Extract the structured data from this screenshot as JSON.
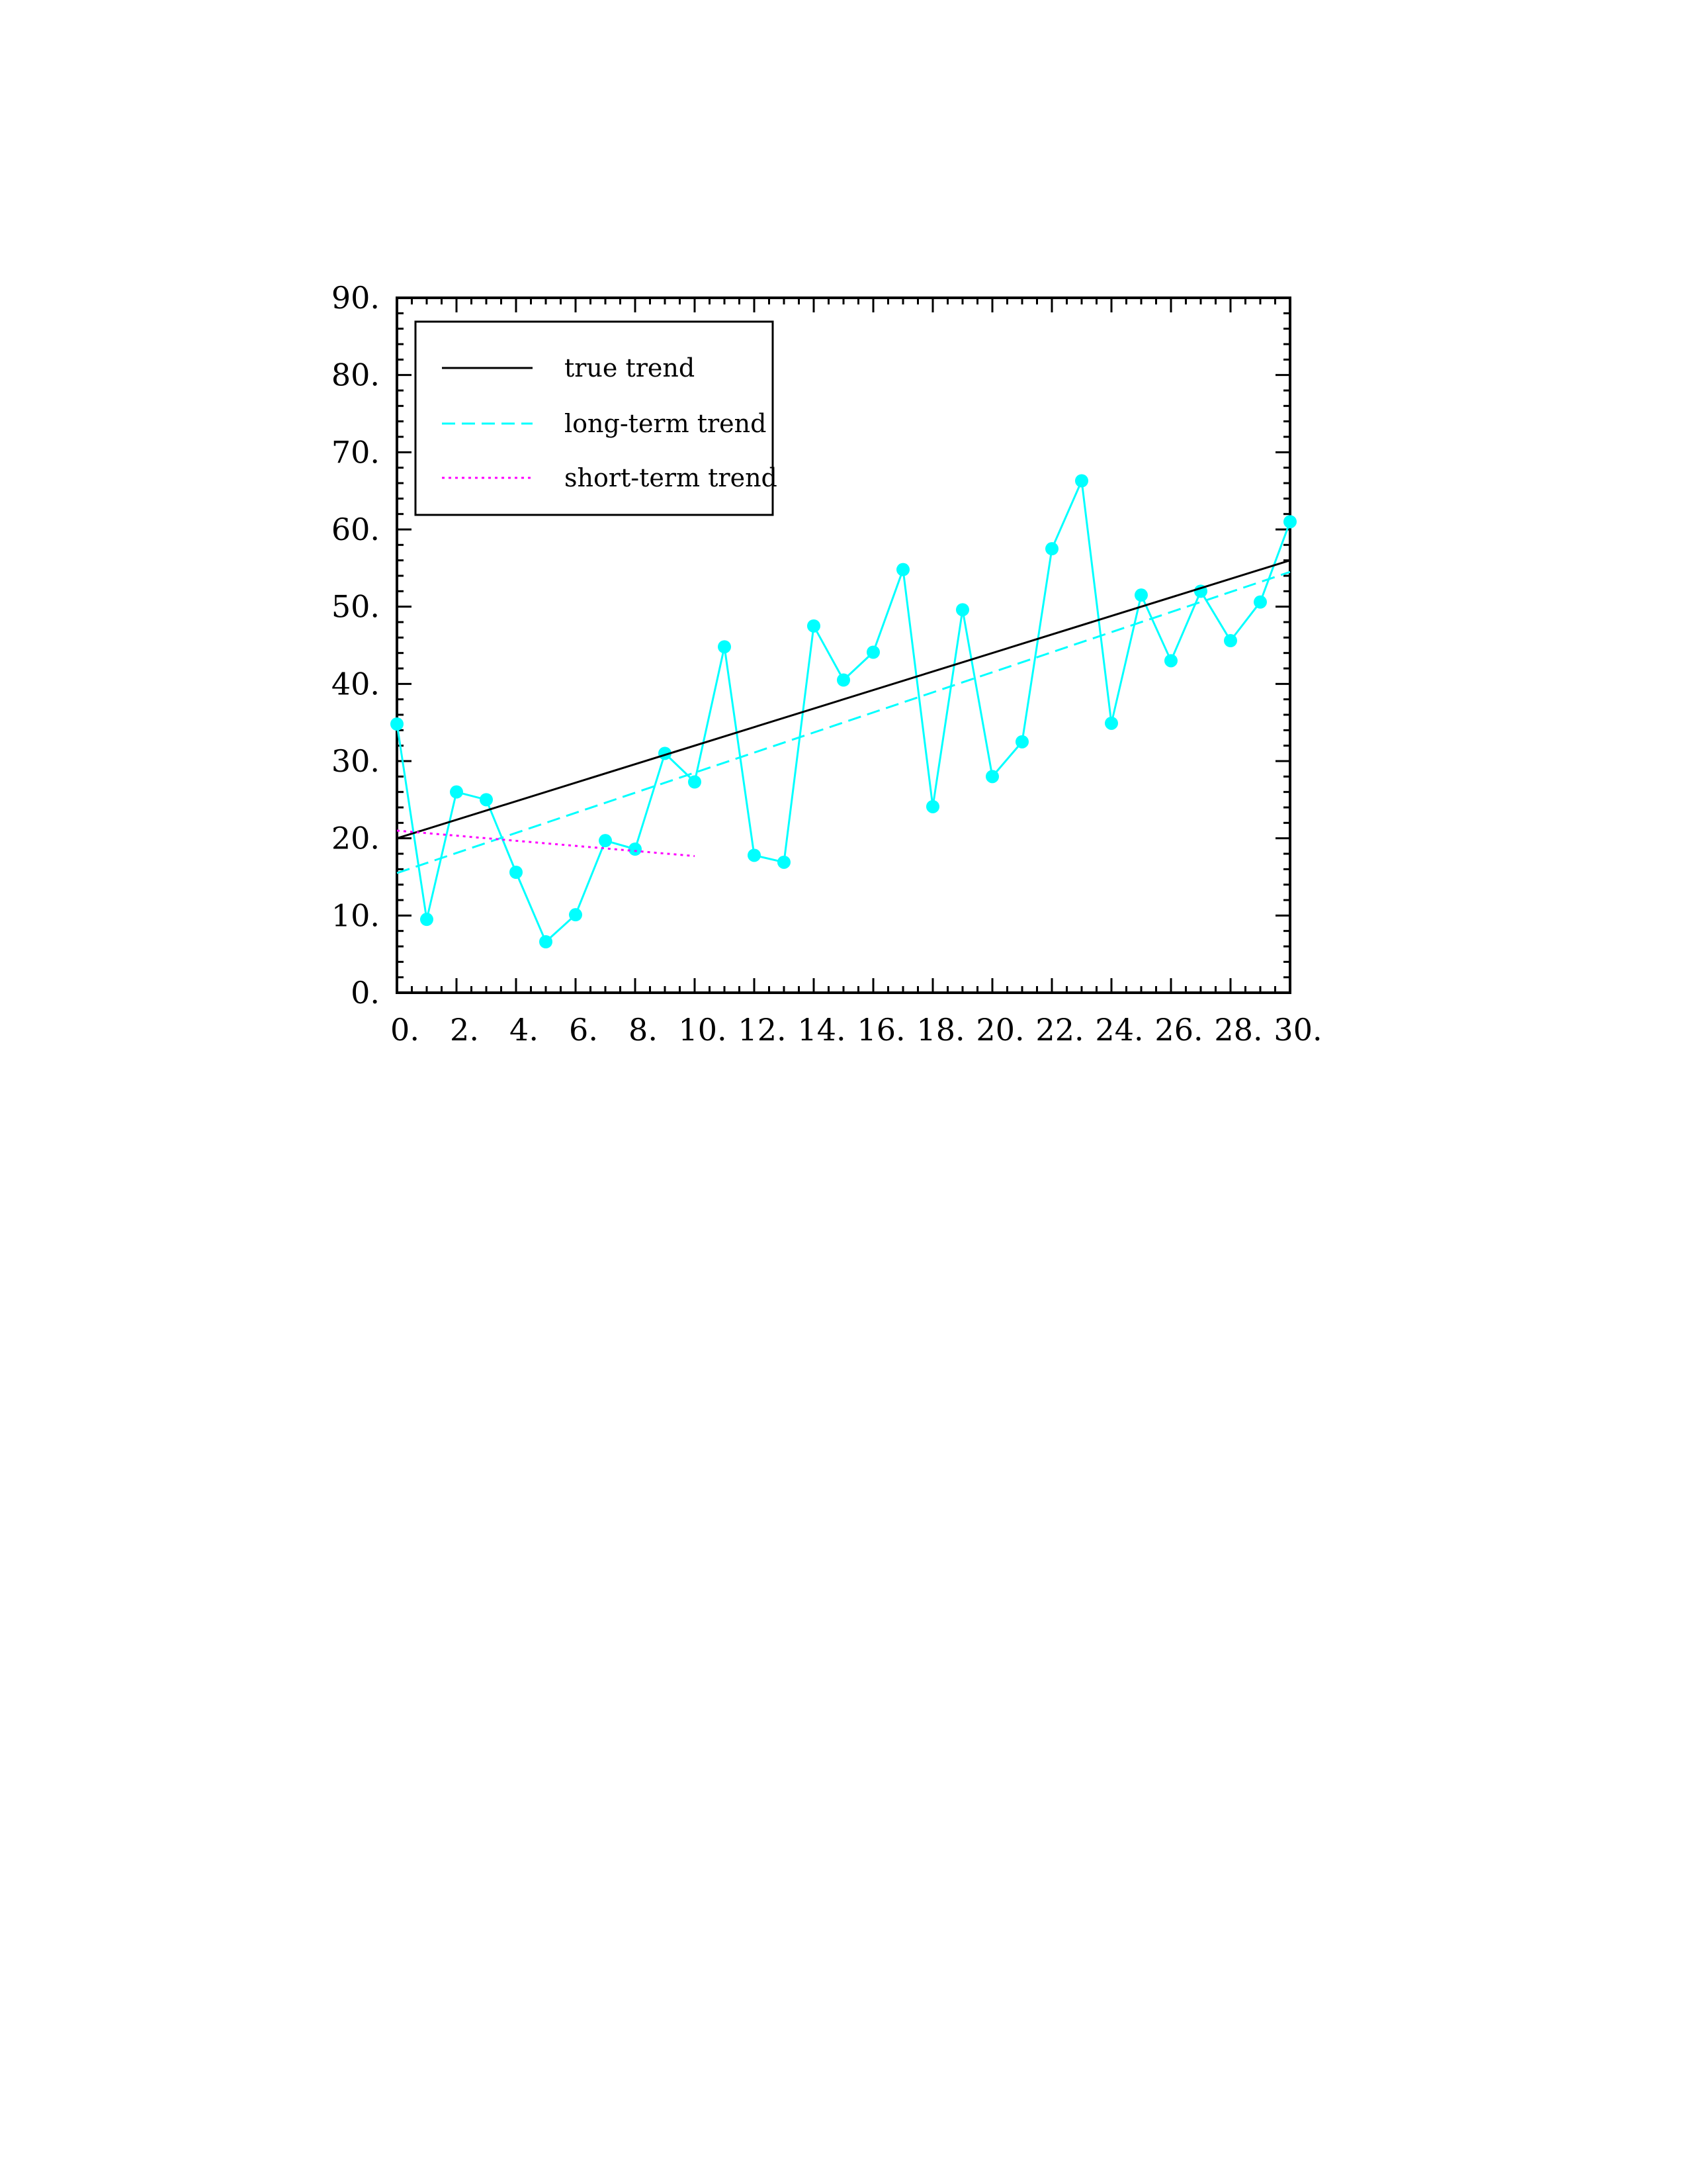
{
  "chart_data": {
    "type": "line",
    "xlim": [
      0,
      30
    ],
    "ylim": [
      0,
      90
    ],
    "x_ticks": [
      0,
      2,
      4,
      6,
      8,
      10,
      12,
      14,
      16,
      18,
      20,
      22,
      24,
      26,
      28,
      30
    ],
    "x_tick_labels": [
      "0.",
      "2.",
      "4.",
      "6.",
      "8.",
      "10.",
      "12.",
      "14.",
      "16.",
      "18.",
      "20.",
      "22.",
      "24.",
      "26.",
      "28.",
      "30."
    ],
    "y_ticks": [
      0,
      10,
      20,
      30,
      40,
      50,
      60,
      70,
      80,
      90
    ],
    "y_tick_labels": [
      "0.",
      "10.",
      "20.",
      "30.",
      "40.",
      "50.",
      "60.",
      "70.",
      "80.",
      "90."
    ],
    "grid": false,
    "legend_position": "top-left",
    "legend": [
      "true trend",
      "long-term trend",
      "short-term trend"
    ],
    "series": [
      {
        "kind": "data",
        "style": "solid-with-markers",
        "color": "#00FFFF",
        "x": [
          0,
          1,
          2,
          3,
          4,
          5,
          6,
          7,
          8,
          9,
          10,
          11,
          12,
          13,
          14,
          15,
          16,
          17,
          18,
          19,
          20,
          21,
          22,
          23,
          24,
          25,
          26,
          27,
          28,
          29,
          30
        ],
        "y": [
          34.8,
          9.5,
          26,
          25,
          15.6,
          6.6,
          10.1,
          19.7,
          18.6,
          31,
          27.3,
          44.8,
          17.8,
          16.9,
          47.5,
          40.5,
          44.1,
          54.8,
          24.1,
          49.6,
          28,
          32.5,
          57.5,
          66.3,
          34.9,
          51.5,
          43,
          52,
          45.6,
          50.6,
          61
        ]
      },
      {
        "name": "true trend",
        "kind": "line",
        "style": "solid",
        "color": "#000000",
        "x": [
          0,
          30
        ],
        "y": [
          20,
          56
        ]
      },
      {
        "name": "long-term trend",
        "kind": "line",
        "style": "dashed",
        "color": "#00FFFF",
        "x": [
          0,
          30
        ],
        "y": [
          15.5,
          54.5
        ]
      },
      {
        "name": "short-term trend",
        "kind": "line",
        "style": "dotted",
        "color": "#FF00FF",
        "x": [
          0,
          10
        ],
        "y": [
          21,
          17.7
        ]
      }
    ]
  }
}
